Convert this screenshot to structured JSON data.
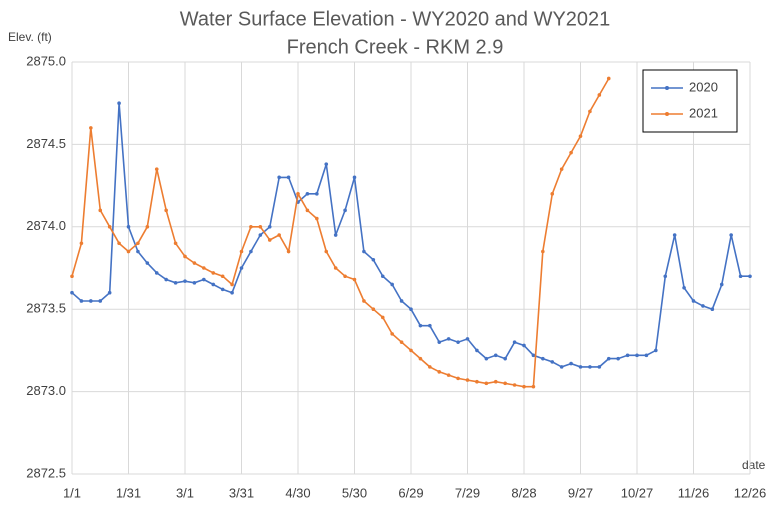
{
  "chart_data": {
    "type": "line",
    "title": "Water Surface Elevation - WY2020 and WY2021",
    "subtitle": "French Creek - RKM 2.9",
    "y_label": "Elev. (ft)",
    "x_label": "date",
    "categories": [
      "1/1",
      null,
      null,
      null,
      null,
      null,
      "1/31",
      null,
      null,
      null,
      null,
      null,
      "3/1",
      null,
      null,
      null,
      null,
      null,
      "3/31",
      null,
      null,
      null,
      null,
      null,
      "4/30",
      null,
      null,
      null,
      null,
      null,
      "5/30",
      null,
      null,
      null,
      null,
      null,
      "6/29",
      null,
      null,
      null,
      null,
      null,
      "7/29",
      null,
      null,
      null,
      null,
      null,
      "8/28",
      null,
      null,
      null,
      null,
      null,
      "9/27",
      null,
      null,
      null,
      null,
      null,
      "10/27",
      null,
      null,
      null,
      null,
      null,
      "11/26",
      null,
      null,
      null,
      null,
      null,
      "12/26"
    ],
    "series": [
      {
        "name": "2020",
        "color": "#4472c4",
        "values": [
          2873.6,
          2873.55,
          2873.55,
          2873.55,
          2873.6,
          2874.75,
          2874.0,
          2873.85,
          2873.78,
          2873.72,
          2873.68,
          2873.66,
          2873.67,
          2873.66,
          2873.68,
          2873.65,
          2873.62,
          2873.6,
          2873.75,
          2873.85,
          2873.95,
          2874.0,
          2874.3,
          2874.3,
          2874.15,
          2874.2,
          2874.2,
          2874.38,
          2873.95,
          2874.1,
          2874.3,
          2873.85,
          2873.8,
          2873.7,
          2873.65,
          2873.55,
          2873.5,
          2873.4,
          2873.4,
          2873.3,
          2873.32,
          2873.3,
          2873.32,
          2873.25,
          2873.2,
          2873.22,
          2873.2,
          2873.3,
          2873.28,
          2873.22,
          2873.2,
          2873.18,
          2873.15,
          2873.17,
          2873.15,
          2873.15,
          2873.15,
          2873.2,
          2873.2,
          2873.22,
          2873.22,
          2873.22,
          2873.25,
          2873.7,
          2873.95,
          2873.63,
          2873.55,
          2873.52,
          2873.5,
          2873.65,
          2873.95,
          2873.7,
          2873.7
        ]
      },
      {
        "name": "2021",
        "color": "#ed7d31",
        "values": [
          2873.7,
          2873.9,
          2874.6,
          2874.1,
          2874.0,
          2873.9,
          2873.85,
          2873.9,
          2874.0,
          2874.35,
          2874.1,
          2873.9,
          2873.82,
          2873.78,
          2873.75,
          2873.72,
          2873.7,
          2873.65,
          2873.85,
          2874.0,
          2874.0,
          2873.92,
          2873.95,
          2873.85,
          2874.2,
          2874.1,
          2874.05,
          2873.85,
          2873.75,
          2873.7,
          2873.68,
          2873.55,
          2873.5,
          2873.45,
          2873.35,
          2873.3,
          2873.25,
          2873.2,
          2873.15,
          2873.12,
          2873.1,
          2873.08,
          2873.07,
          2873.06,
          2873.05,
          2873.06,
          2873.05,
          2873.04,
          2873.03,
          2873.03,
          2873.85,
          2874.2,
          2874.35,
          2874.45,
          2874.55,
          2874.7,
          2874.8,
          2874.9,
          null,
          null,
          null,
          null,
          null,
          null,
          null,
          null,
          null,
          null,
          null,
          null,
          null,
          null,
          null
        ]
      }
    ],
    "ylim": [
      2872.5,
      2875.0
    ],
    "yticks": [
      {
        "value": 2872.5,
        "label": "2872.5"
      },
      {
        "value": 2873,
        "label": "2873.0"
      },
      {
        "value": 2873.5,
        "label": "2873.5"
      },
      {
        "value": 2874,
        "label": "2874.0"
      },
      {
        "value": 2874.5,
        "label": "2874.5"
      },
      {
        "value": 2875,
        "label": "2875.0"
      }
    ],
    "grid": true,
    "legend": "upper right"
  }
}
